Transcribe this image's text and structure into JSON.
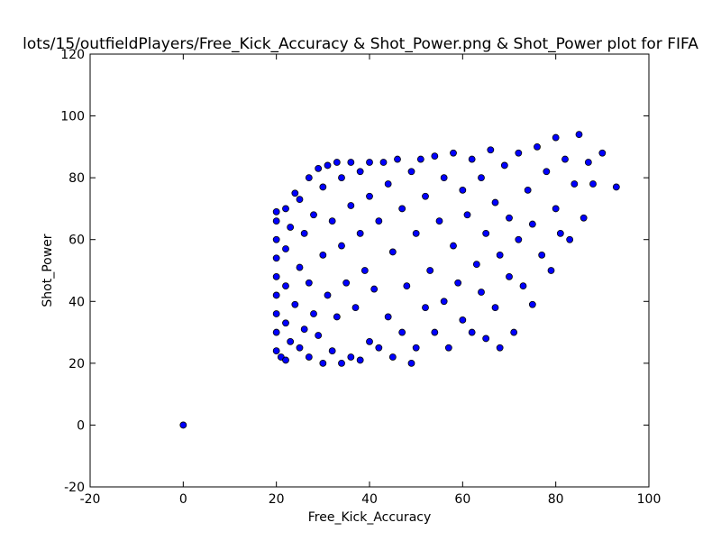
{
  "chart_data": {
    "type": "scatter",
    "title": "lots/15/outfieldPlayers/Free_Kick_Accuracy & Shot_Power.png & Shot_Power plot for FIFA",
    "xlabel": "Free_Kick_Accuracy",
    "ylabel": "Shot_Power",
    "xlim": [
      -20,
      100
    ],
    "ylim": [
      -20,
      120
    ],
    "xticks": [
      "-20",
      "0",
      "20",
      "40",
      "60",
      "80",
      "100"
    ],
    "yticks": [
      "-20",
      "0",
      "20",
      "40",
      "60",
      "80",
      "100",
      "120"
    ],
    "grid": false,
    "legend": "none",
    "marker_color": "#0000ff",
    "marker_edge_color": "#000000",
    "points": [
      [
        0,
        0
      ],
      [
        20,
        24
      ],
      [
        20,
        30
      ],
      [
        20,
        36
      ],
      [
        20,
        42
      ],
      [
        20,
        48
      ],
      [
        20,
        54
      ],
      [
        20,
        60
      ],
      [
        20,
        66
      ],
      [
        20,
        69
      ],
      [
        21,
        22
      ],
      [
        22,
        21
      ],
      [
        22,
        33
      ],
      [
        22,
        45
      ],
      [
        22,
        57
      ],
      [
        22,
        70
      ],
      [
        23,
        27
      ],
      [
        23,
        64
      ],
      [
        24,
        39
      ],
      [
        24,
        75
      ],
      [
        25,
        25
      ],
      [
        25,
        51
      ],
      [
        25,
        73
      ],
      [
        26,
        31
      ],
      [
        26,
        62
      ],
      [
        27,
        22
      ],
      [
        27,
        46
      ],
      [
        27,
        80
      ],
      [
        28,
        36
      ],
      [
        28,
        68
      ],
      [
        29,
        29
      ],
      [
        29,
        83
      ],
      [
        30,
        20
      ],
      [
        30,
        55
      ],
      [
        30,
        77
      ],
      [
        31,
        42
      ],
      [
        31,
        84
      ],
      [
        32,
        24
      ],
      [
        32,
        66
      ],
      [
        33,
        35
      ],
      [
        33,
        85
      ],
      [
        34,
        20
      ],
      [
        34,
        58
      ],
      [
        34,
        80
      ],
      [
        35,
        46
      ],
      [
        36,
        22
      ],
      [
        36,
        71
      ],
      [
        36,
        85
      ],
      [
        37,
        38
      ],
      [
        38,
        21
      ],
      [
        38,
        62
      ],
      [
        38,
        82
      ],
      [
        39,
        50
      ],
      [
        40,
        27
      ],
      [
        40,
        74
      ],
      [
        40,
        85
      ],
      [
        41,
        44
      ],
      [
        42,
        25
      ],
      [
        42,
        66
      ],
      [
        43,
        85
      ],
      [
        44,
        35
      ],
      [
        44,
        78
      ],
      [
        45,
        22
      ],
      [
        45,
        56
      ],
      [
        46,
        86
      ],
      [
        47,
        30
      ],
      [
        47,
        70
      ],
      [
        48,
        45
      ],
      [
        49,
        20
      ],
      [
        49,
        82
      ],
      [
        50,
        62
      ],
      [
        50,
        25
      ],
      [
        51,
        86
      ],
      [
        52,
        38
      ],
      [
        52,
        74
      ],
      [
        53,
        50
      ],
      [
        54,
        30
      ],
      [
        54,
        87
      ],
      [
        55,
        66
      ],
      [
        56,
        40
      ],
      [
        56,
        80
      ],
      [
        57,
        25
      ],
      [
        58,
        58
      ],
      [
        58,
        88
      ],
      [
        59,
        46
      ],
      [
        60,
        34
      ],
      [
        60,
        76
      ],
      [
        61,
        68
      ],
      [
        62,
        30
      ],
      [
        62,
        86
      ],
      [
        63,
        52
      ],
      [
        64,
        43
      ],
      [
        64,
        80
      ],
      [
        65,
        28
      ],
      [
        65,
        62
      ],
      [
        66,
        89
      ],
      [
        67,
        38
      ],
      [
        67,
        72
      ],
      [
        68,
        25
      ],
      [
        68,
        55
      ],
      [
        69,
        84
      ],
      [
        70,
        48
      ],
      [
        70,
        67
      ],
      [
        71,
        30
      ],
      [
        72,
        60
      ],
      [
        72,
        88
      ],
      [
        73,
        45
      ],
      [
        74,
        76
      ],
      [
        75,
        39
      ],
      [
        75,
        65
      ],
      [
        76,
        90
      ],
      [
        77,
        55
      ],
      [
        78,
        82
      ],
      [
        79,
        50
      ],
      [
        80,
        70
      ],
      [
        80,
        93
      ],
      [
        81,
        62
      ],
      [
        82,
        86
      ],
      [
        83,
        60
      ],
      [
        84,
        78
      ],
      [
        85,
        94
      ],
      [
        86,
        67
      ],
      [
        87,
        85
      ],
      [
        88,
        78
      ],
      [
        90,
        88
      ],
      [
        93,
        77
      ]
    ]
  }
}
